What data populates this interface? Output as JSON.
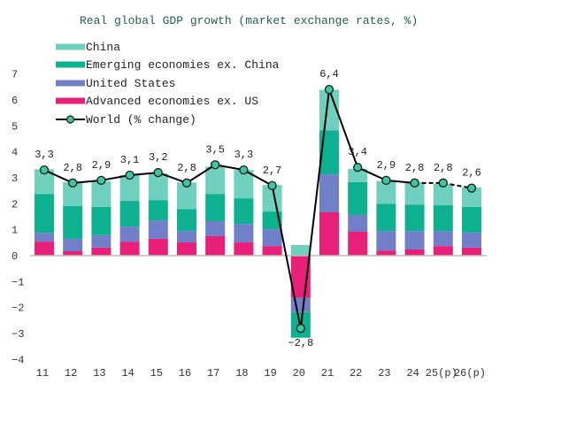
{
  "chart_data": {
    "type": "bar",
    "stacked": true,
    "title": "Real global GDP growth (market exchange rates, %)",
    "xlabel": "",
    "ylabel": "",
    "ylim": [
      -4,
      7
    ],
    "yticks": [
      "7",
      "6",
      "5",
      "4",
      "3",
      "2",
      "1",
      "0",
      "−1",
      "−2",
      "−3",
      "−4"
    ],
    "ytick_values": [
      7,
      6,
      5,
      4,
      3,
      2,
      1,
      0,
      -1,
      -2,
      -3,
      -4
    ],
    "grid": false,
    "legend_position": "top-left",
    "categories": [
      "11",
      "12",
      "13",
      "14",
      "15",
      "16",
      "17",
      "18",
      "19",
      "20",
      "21",
      "22",
      "23",
      "24",
      "25(p)",
      "26(p)"
    ],
    "series": [
      {
        "name": "Advanced economies ex. US",
        "color": "#e8207a",
        "values": [
          0.54,
          0.17,
          0.31,
          0.54,
          0.65,
          0.51,
          0.75,
          0.51,
          0.37,
          -1.63,
          1.67,
          0.92,
          0.2,
          0.24,
          0.37,
          0.31
        ]
      },
      {
        "name": "United States",
        "color": "#717fc9",
        "values": [
          0.34,
          0.48,
          0.48,
          0.58,
          0.71,
          0.44,
          0.58,
          0.71,
          0.65,
          -0.54,
          1.46,
          0.65,
          0.75,
          0.71,
          0.58,
          0.58
        ]
      },
      {
        "name": "Emerging economies ex. China",
        "color": "#0db08f",
        "values": [
          1.5,
          1.26,
          1.09,
          0.99,
          0.78,
          0.85,
          1.05,
          0.99,
          0.68,
          -0.99,
          1.7,
          1.26,
          1.05,
          1.02,
          0.99,
          0.99
        ]
      },
      {
        "name": "China",
        "color": "#6fd1bd",
        "values": [
          0.95,
          0.92,
          0.99,
          0.99,
          1.02,
          1.02,
          1.05,
          1.09,
          1.02,
          0.41,
          1.56,
          0.51,
          0.88,
          0.85,
          0.82,
          0.75
        ]
      }
    ],
    "line_series": {
      "name": "World (% change)",
      "color": "#000000",
      "marker_color": "#3cc79e",
      "values": [
        3.3,
        2.8,
        2.9,
        3.1,
        3.2,
        2.8,
        3.5,
        3.3,
        2.7,
        -2.8,
        6.4,
        3.4,
        2.9,
        2.8,
        2.8,
        2.6
      ],
      "labels": [
        "3,3",
        "2,8",
        "2,9",
        "3,1",
        "3,2",
        "2,8",
        "3,5",
        "3,3",
        "2,7",
        "−2,8",
        "6,4",
        "3,4",
        "2,9",
        "2,8",
        "2,8",
        "2,6"
      ],
      "dashed_from_category": "24"
    },
    "legend": [
      {
        "name": "China",
        "kind": "bar",
        "color": "#6fd1bd"
      },
      {
        "name": "Emerging economies ex. China",
        "kind": "bar",
        "color": "#0db08f"
      },
      {
        "name": "United States",
        "kind": "bar",
        "color": "#717fc9"
      },
      {
        "name": "Advanced economies ex. US",
        "kind": "bar",
        "color": "#e8207a"
      },
      {
        "name": "World (% change)",
        "kind": "line",
        "color": "#000000",
        "marker_color": "#3cc79e"
      }
    ]
  }
}
